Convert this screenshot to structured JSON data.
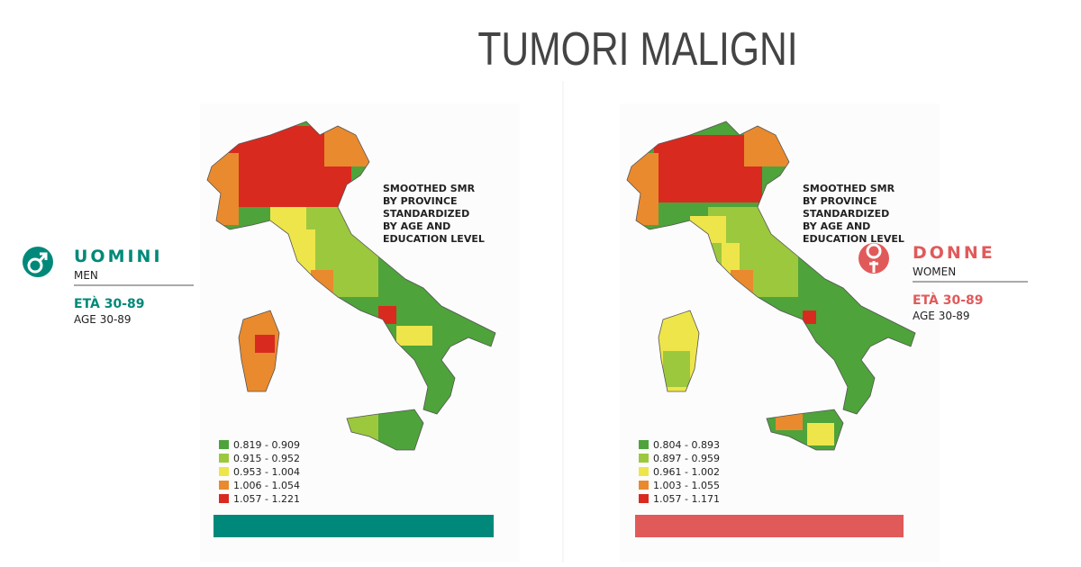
{
  "title": "TUMORI MALIGNI",
  "panels": [
    {
      "group": "UOMINI",
      "group_en": "MEN",
      "age": "ETÀ 30-89",
      "age_en": "AGE 30-89",
      "accent": "#00897a",
      "caption": [
        "SMOOTHED SMR",
        "BY PROVINCE",
        "STANDARDIZED",
        "BY AGE AND",
        "EDUCATION LEVEL"
      ],
      "legend": [
        {
          "label": "0.819 - 0.909",
          "color": "#4ea33b"
        },
        {
          "label": "0.915 - 0.952",
          "color": "#9cc83e"
        },
        {
          "label": "0.953 - 1.004",
          "color": "#eee54a"
        },
        {
          "label": "1.006 - 1.054",
          "color": "#e98a2e"
        },
        {
          "label": "1.057 - 1.221",
          "color": "#d92a20"
        }
      ]
    },
    {
      "group": "DONNE",
      "group_en": "WOMEN",
      "age": "ETÀ 30-89",
      "age_en": "AGE 30-89",
      "accent": "#e15a5a",
      "caption": [
        "SMOOTHED SMR",
        "BY PROVINCE",
        "STANDARDIZED",
        "BY AGE AND",
        "EDUCATION LEVEL"
      ],
      "legend": [
        {
          "label": "0.804 - 0.893",
          "color": "#4ea33b"
        },
        {
          "label": "0.897 - 0.959",
          "color": "#9cc83e"
        },
        {
          "label": "0.961 - 1.002",
          "color": "#eee54a"
        },
        {
          "label": "1.003 - 1.055",
          "color": "#e98a2e"
        },
        {
          "label": "1.057 - 1.171",
          "color": "#d92a20"
        }
      ]
    }
  ]
}
